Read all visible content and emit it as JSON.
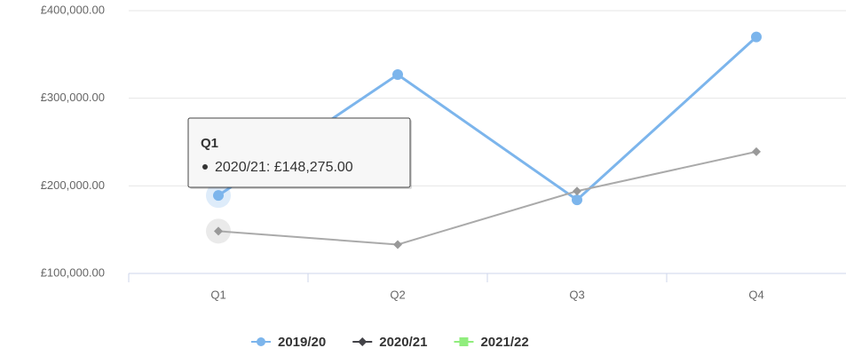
{
  "chart_data": {
    "type": "line",
    "categories": [
      "Q1",
      "Q2",
      "Q3",
      "Q4"
    ],
    "series": [
      {
        "name": "2019/20",
        "color": "#7cb5ec",
        "marker": "circle",
        "values": [
          189000,
          327000,
          184000,
          370000
        ]
      },
      {
        "name": "2020/21",
        "color": "#434348",
        "line_color": "#aaaaaa",
        "marker": "diamond",
        "values": [
          148275,
          133000,
          194000,
          239000
        ]
      },
      {
        "name": "2021/22",
        "color": "#90ed7d",
        "marker": "square",
        "values": [
          null,
          null,
          null,
          null
        ]
      }
    ],
    "ylim": [
      100000,
      400000
    ],
    "yticks": [
      {
        "value": 100000,
        "label": "£100,000.00"
      },
      {
        "value": 200000,
        "label": "£200,000.00"
      },
      {
        "value": 300000,
        "label": "£300,000.00"
      },
      {
        "value": 400000,
        "label": "£400,000.00"
      }
    ],
    "grid": true,
    "legend": "bottom",
    "tooltip": {
      "title": "Q1",
      "text": "2020/21: £148,275.00"
    }
  }
}
